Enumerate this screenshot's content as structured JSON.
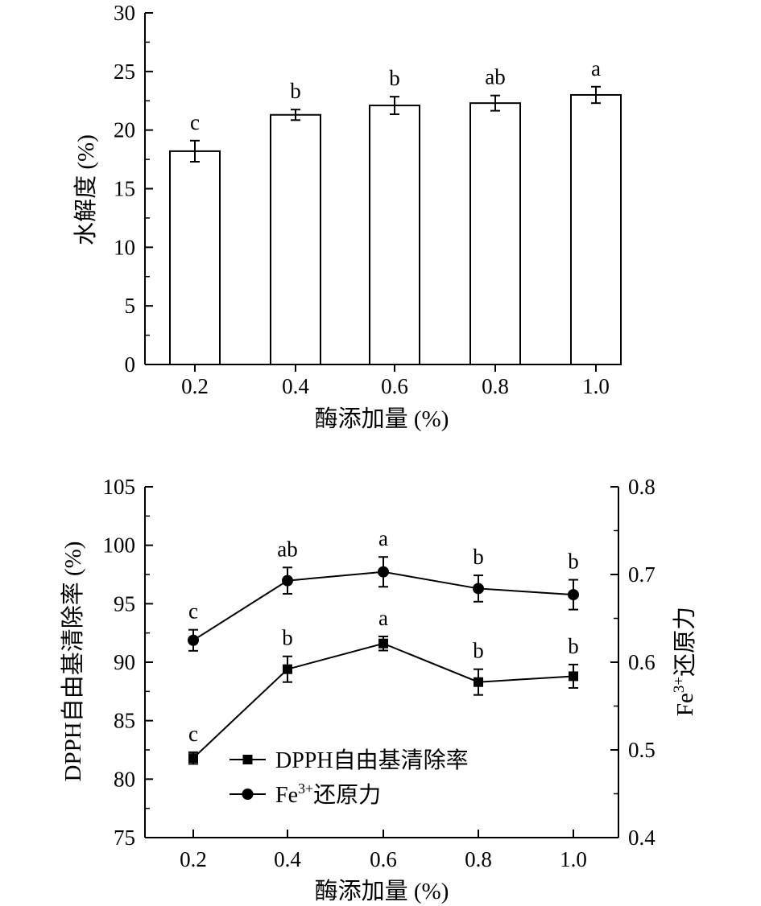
{
  "chart_data": [
    {
      "type": "bar",
      "xlabel": "酶添加量 (%)",
      "ylabel": "水解度 (%)",
      "ylim": [
        0,
        30
      ],
      "yticks": [
        "0",
        "5",
        "10",
        "15",
        "20",
        "25",
        "30"
      ],
      "categories": [
        "0.2",
        "0.4",
        "0.6",
        "0.8",
        "1.0"
      ],
      "values": [
        18.2,
        21.3,
        22.1,
        22.3,
        23.0
      ],
      "errors": [
        0.9,
        0.45,
        0.75,
        0.65,
        0.7
      ],
      "significance": [
        "c",
        "b",
        "b",
        "ab",
        "a"
      ],
      "grid": false,
      "bar_color": "#ffffff"
    },
    {
      "type": "line",
      "xlabel": "酶添加量 (%)",
      "ylabel": "DPPH自由基清除率 (%)",
      "y2label_main": "Fe",
      "y2label_sup": "3+",
      "y2label_rest": "还原力",
      "x": [
        "0.2",
        "0.4",
        "0.6",
        "0.8",
        "1.0"
      ],
      "ylim": [
        75,
        105
      ],
      "yticks": [
        "75",
        "80",
        "85",
        "90",
        "95",
        "100",
        "105"
      ],
      "y2lim": [
        0.4,
        0.8
      ],
      "y2ticks": [
        "0.4",
        "0.5",
        "0.6",
        "0.7",
        "0.8"
      ],
      "legend_position": "lower-left",
      "grid": false,
      "series": [
        {
          "name": "DPPH自由基清除率",
          "axis": "left",
          "marker": "square",
          "values": [
            81.8,
            89.4,
            91.6,
            88.3,
            88.8
          ],
          "errors": [
            0.5,
            1.1,
            0.6,
            1.1,
            1.0
          ],
          "significance": [
            "c",
            "b",
            "a",
            "b",
            "b"
          ]
        },
        {
          "name_main": "Fe",
          "name_sup": "3+",
          "name_rest": "还原力",
          "axis": "right",
          "marker": "circle",
          "values": [
            0.625,
            0.693,
            0.703,
            0.684,
            0.677
          ],
          "errors": [
            0.012,
            0.015,
            0.017,
            0.015,
            0.017
          ],
          "significance": [
            "c",
            "ab",
            "a",
            "b",
            "b"
          ]
        }
      ]
    }
  ]
}
